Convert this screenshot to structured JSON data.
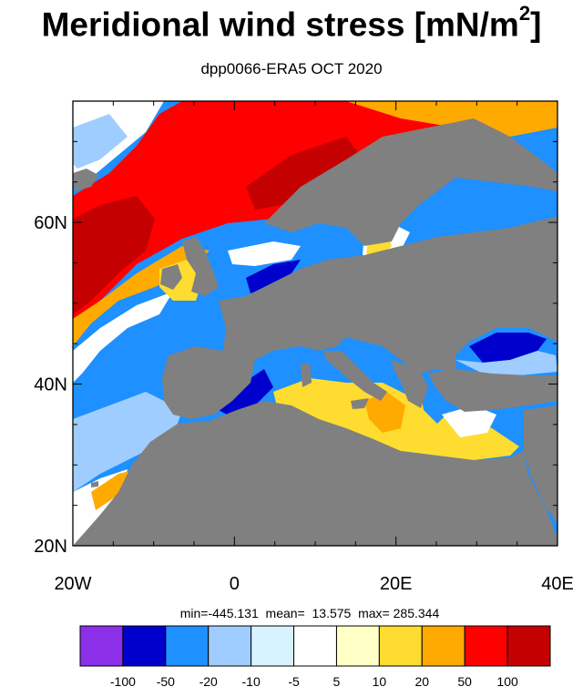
{
  "title": {
    "text": "Meridional wind stress [mN/m",
    "superscript": "2",
    "closing": "]"
  },
  "subtitle": "dpp0066-ERA5  OCT 2020",
  "stats": {
    "text": "min=-445.131  mean=  13.575  max= 285.344"
  },
  "axes": {
    "x_ticks": [
      {
        "label": "20W",
        "value": -20
      },
      {
        "label": "0",
        "value": 0
      },
      {
        "label": "20E",
        "value": 20
      },
      {
        "label": "40E",
        "value": 40
      }
    ],
    "y_ticks": [
      {
        "label": "20N",
        "value": 20
      },
      {
        "label": "40N",
        "value": 40
      },
      {
        "label": "60N",
        "value": 60
      }
    ],
    "lon_range": [
      -20,
      40
    ],
    "lat_range": [
      20,
      75
    ]
  },
  "colorbar": {
    "colors": [
      "#8c2fe8",
      "#0000cd",
      "#1e90ff",
      "#9fcdff",
      "#d6f3ff",
      "#ffffff",
      "#ffffc6",
      "#ffdc30",
      "#ffaa00",
      "#ff0000",
      "#c40000"
    ],
    "labels": [
      "-100",
      "-50",
      "-20",
      "-10",
      "-5",
      "5",
      "10",
      "20",
      "50",
      "100"
    ]
  },
  "colors": {
    "land": "#808080"
  }
}
